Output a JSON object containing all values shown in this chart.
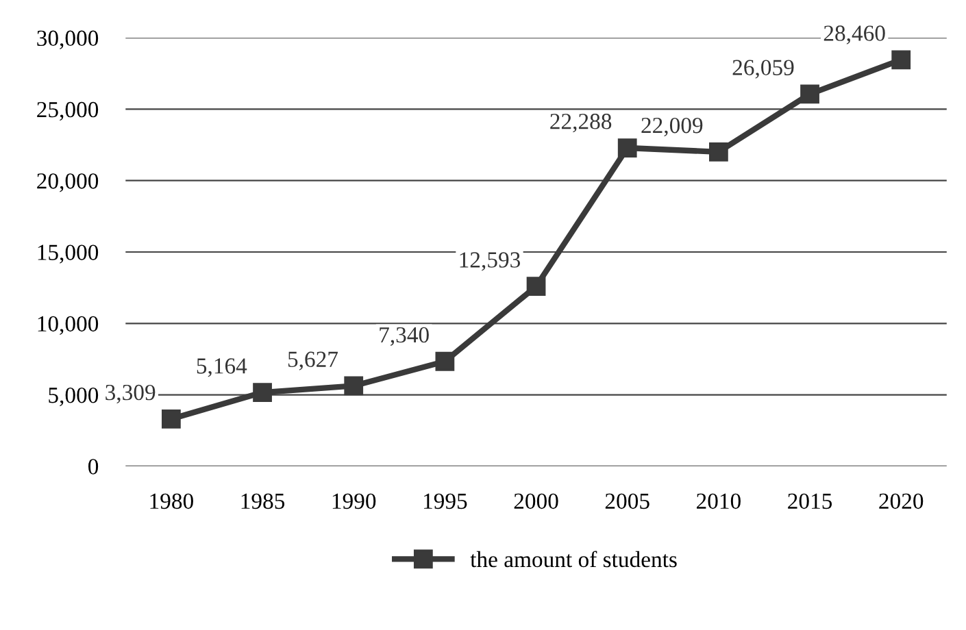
{
  "chart_data": {
    "type": "line",
    "categories": [
      "1980",
      "1985",
      "1990",
      "1995",
      "2000",
      "2005",
      "2010",
      "2015",
      "2020"
    ],
    "series": [
      {
        "name": "the amount of students",
        "color": "#3a3a3a",
        "values": [
          3309,
          5164,
          5627,
          7340,
          12593,
          22288,
          22009,
          26059,
          28460
        ],
        "value_labels": [
          "3,309",
          "5,164",
          "5,627",
          "7,340",
          "12,593",
          "22,288",
          "22,009",
          "26,059",
          "28,460"
        ]
      }
    ],
    "ylim": [
      0,
      30000
    ],
    "yticks": [
      {
        "value": 0,
        "label": "0"
      },
      {
        "value": 5000,
        "label": "5,000"
      },
      {
        "value": 10000,
        "label": "10,000"
      },
      {
        "value": 15000,
        "label": "15,000"
      },
      {
        "value": 20000,
        "label": "20,000"
      },
      {
        "value": 25000,
        "label": "25,000"
      },
      {
        "value": 30000,
        "label": "30,000"
      }
    ],
    "grid": "y",
    "legend": "bottom",
    "marker": "square",
    "line_style": "solid"
  }
}
